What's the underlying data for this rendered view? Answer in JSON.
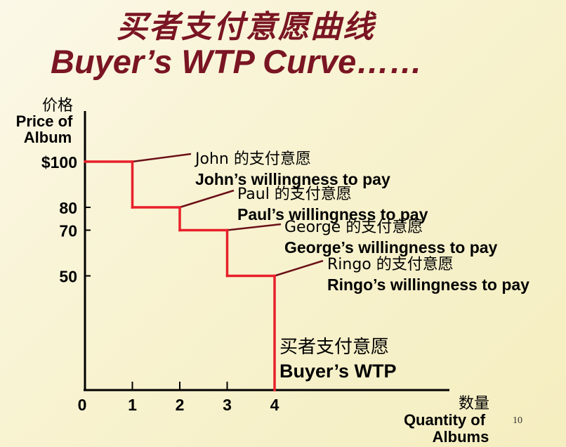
{
  "title_cn": "买者支付意愿曲线",
  "title_en": "Buyer’s WTP Curve……",
  "page_number": "10",
  "colors": {
    "title": "#7a1523",
    "curve": "#e8202a",
    "leader": "#6b1018",
    "axis": "#000000"
  },
  "chart_data": {
    "type": "line",
    "step": true,
    "ylabel_cn": "价格",
    "ylabel": "Price of Album",
    "xlabel_cn": "数量",
    "xlabel": "Quantity of Albums",
    "xlim": [
      0,
      4
    ],
    "ylim": [
      0,
      100
    ],
    "x_ticks": [
      "0",
      "1",
      "2",
      "3",
      "4"
    ],
    "y_ticks": [
      {
        "value": 100,
        "label": "$100"
      },
      {
        "value": 80,
        "label": "80"
      },
      {
        "value": 70,
        "label": "70"
      },
      {
        "value": 50,
        "label": "50"
      }
    ],
    "points": [
      {
        "x": 0,
        "y": 100
      },
      {
        "x": 1,
        "y": 100
      },
      {
        "x": 1,
        "y": 80
      },
      {
        "x": 2,
        "y": 80
      },
      {
        "x": 2,
        "y": 70
      },
      {
        "x": 3,
        "y": 70
      },
      {
        "x": 3,
        "y": 50
      },
      {
        "x": 4,
        "y": 50
      },
      {
        "x": 4,
        "y": 0
      }
    ],
    "annotations": [
      {
        "cn": "John 的支付意愿",
        "en": "John’s willingness to pay",
        "x": 1,
        "y": 100
      },
      {
        "cn": "Paul 的支付意愿",
        "en": "Paul’s willingness to pay",
        "x": 2,
        "y": 80
      },
      {
        "cn": "George 的支付意愿",
        "en": "George’s willingness to pay",
        "x": 3,
        "y": 70
      },
      {
        "cn": "Ringo 的支付意愿",
        "en": "Ringo’s willingness to pay",
        "x": 4,
        "y": 50
      }
    ],
    "curve_label_cn": "买者支付意愿",
    "curve_label": "Buyer’s WTP"
  }
}
